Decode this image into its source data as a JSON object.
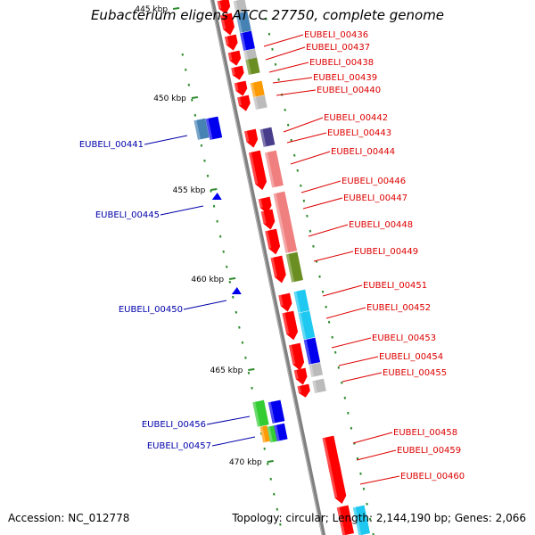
{
  "title": "Eubacterium eligens ATCC 27750, complete genome",
  "footer": {
    "accession": "Accession: NC_012778",
    "summary": "Topology: circular; Length: 2,144,190 bp; Genes: 2,066"
  },
  "colors": {
    "backbone": "#808080",
    "ticks": "#2e8b2e",
    "label_forward": "#dd0000",
    "label_reverse": "#0000aa",
    "gene_red": "#ff0000",
    "gene_pink": "#f08080",
    "gene_olive": "#6b8e23",
    "gene_blue": "#0000ee",
    "gene_steel": "#4682b4",
    "gene_gray": "#bbbbbb",
    "gene_orange": "#ff9900",
    "gene_sky": "#1ec8f0",
    "gene_green": "#33cc33",
    "gene_slate": "#483d8b"
  },
  "scale_ticks": [
    "445 kbp",
    "450 kbp",
    "455 kbp",
    "460 kbp",
    "465 kbp",
    "470 kbp"
  ],
  "forward_genes": [
    "EUBELI_00436",
    "EUBELI_00437",
    "EUBELI_00438",
    "EUBELI_00439",
    "EUBELI_00440",
    "EUBELI_00442",
    "EUBELI_00443",
    "EUBELI_00444",
    "EUBELI_00446",
    "EUBELI_00447",
    "EUBELI_00448",
    "EUBELI_00449",
    "EUBELI_00451",
    "EUBELI_00452",
    "EUBELI_00453",
    "EUBELI_00454",
    "EUBELI_00455",
    "EUBELI_00458",
    "EUBELI_00459",
    "EUBELI_00460"
  ],
  "reverse_genes": [
    "EUBELI_00441",
    "EUBELI_00445",
    "EUBELI_00450",
    "EUBELI_00456",
    "EUBELI_00457"
  ]
}
